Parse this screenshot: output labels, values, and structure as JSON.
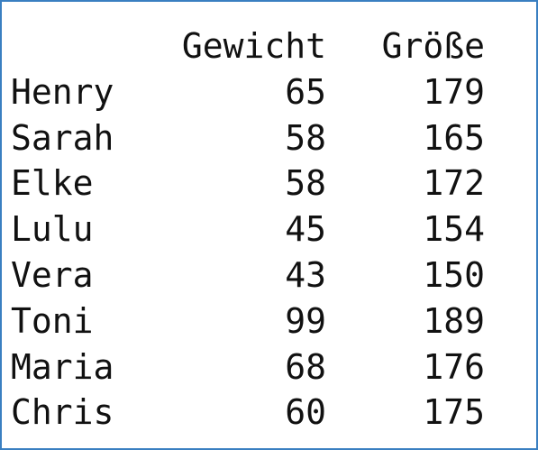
{
  "table": {
    "headers": [
      "",
      "Gewicht",
      "Größe"
    ],
    "rows": [
      {
        "name": "Henry",
        "gewicht": "65",
        "groesse": "179"
      },
      {
        "name": "Sarah",
        "gewicht": "58",
        "groesse": "165"
      },
      {
        "name": "Elke",
        "gewicht": "58",
        "groesse": "172"
      },
      {
        "name": "Lulu",
        "gewicht": "45",
        "groesse": "154"
      },
      {
        "name": "Vera",
        "gewicht": "43",
        "groesse": "150"
      },
      {
        "name": "Toni",
        "gewicht": "99",
        "groesse": "189"
      },
      {
        "name": "Maria",
        "gewicht": "68",
        "groesse": "176"
      },
      {
        "name": "Chris",
        "gewicht": "60",
        "groesse": "175"
      }
    ]
  },
  "colors": {
    "border": "#3a7fc1",
    "text": "#111111",
    "background": "#ffffff"
  }
}
